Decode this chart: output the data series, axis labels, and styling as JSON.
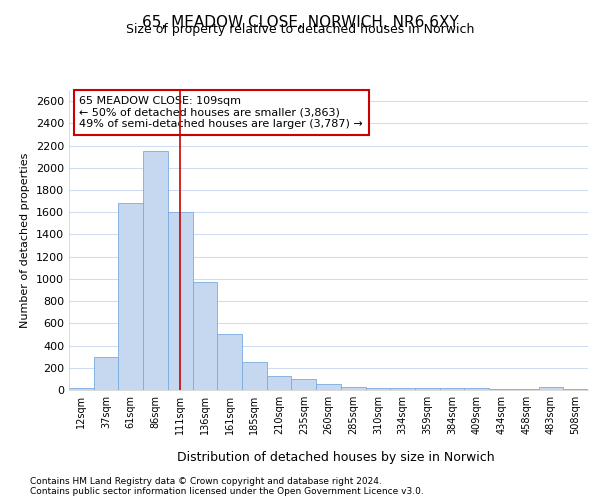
{
  "title_line1": "65, MEADOW CLOSE, NORWICH, NR6 6XY",
  "title_line2": "Size of property relative to detached houses in Norwich",
  "xlabel": "Distribution of detached houses by size in Norwich",
  "ylabel": "Number of detached properties",
  "categories": [
    "12sqm",
    "37sqm",
    "61sqm",
    "86sqm",
    "111sqm",
    "136sqm",
    "161sqm",
    "185sqm",
    "210sqm",
    "235sqm",
    "260sqm",
    "285sqm",
    "310sqm",
    "334sqm",
    "359sqm",
    "384sqm",
    "409sqm",
    "434sqm",
    "458sqm",
    "483sqm",
    "508sqm"
  ],
  "values": [
    20,
    300,
    1680,
    2150,
    1600,
    970,
    500,
    250,
    125,
    100,
    50,
    30,
    20,
    20,
    15,
    15,
    15,
    10,
    5,
    25,
    5
  ],
  "bar_color": "#c5d8f0",
  "bar_edge_color": "#7aabe0",
  "highlight_index": 4,
  "highlight_line_color": "#cc0000",
  "annotation_box_color": "#cc0000",
  "annotation_title": "65 MEADOW CLOSE: 109sqm",
  "annotation_line1": "← 50% of detached houses are smaller (3,863)",
  "annotation_line2": "49% of semi-detached houses are larger (3,787) →",
  "ylim": [
    0,
    2700
  ],
  "yticks": [
    0,
    200,
    400,
    600,
    800,
    1000,
    1200,
    1400,
    1600,
    1800,
    2000,
    2200,
    2400,
    2600
  ],
  "footnote1": "Contains HM Land Registry data © Crown copyright and database right 2024.",
  "footnote2": "Contains public sector information licensed under the Open Government Licence v3.0.",
  "background_color": "#ffffff",
  "grid_color": "#d0ddf0"
}
